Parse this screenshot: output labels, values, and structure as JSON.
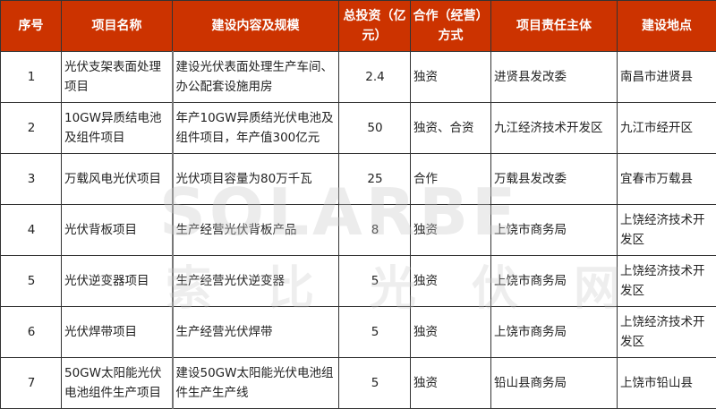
{
  "colors": {
    "header_bg": "#cc3300",
    "header_text": "#ffffff"
  },
  "watermark": {
    "text": "SOLARBE",
    "subtitle": "索比光伏网"
  },
  "headers": [
    "序号",
    "项目名称",
    "建设内容及规模",
    "总投资（亿元）",
    "合作（经营）方式",
    "项目责任主体",
    "建设地点"
  ],
  "rows": [
    [
      "1",
      "光伏支架表面处理项目",
      "建设光伏表面处理生产车间、办公配套设施用房",
      "2.4",
      "独资",
      "进贤县发改委",
      "南昌市进贤县"
    ],
    [
      "2",
      "10GW异质结电池及组件项目",
      "年产10GW异质结光伏电池及组件项目，年产值300亿元",
      "50",
      "独资、合资",
      "九江经济技术开发区",
      "九江市经开区"
    ],
    [
      "3",
      "万载风电光伏项目",
      "光伏项目容量为80万千瓦",
      "25",
      "合作",
      "万载县发改委",
      "宜春市万载县"
    ],
    [
      "4",
      "光伏背板项目",
      "生产经营光伏背板产品",
      "8",
      "独资",
      "上饶市商务局",
      "上饶经济技术开发区"
    ],
    [
      "5",
      "光伏逆变器项目",
      "生产经营光伏逆变器",
      "5",
      "独资",
      "上饶市商务局",
      "上饶经济技术开发区"
    ],
    [
      "6",
      "光伏焊带项目",
      "生产经营光伏焊带",
      "5",
      "独资",
      "上饶市商务局",
      "上饶经济技术开发区"
    ],
    [
      "7",
      "50GW太阳能光伏电池组件生产项目",
      "建设50GW太阳能光伏电池组件生产生产线",
      "5",
      "独资",
      "铅山县商务局",
      "上饶市铅山县"
    ]
  ]
}
